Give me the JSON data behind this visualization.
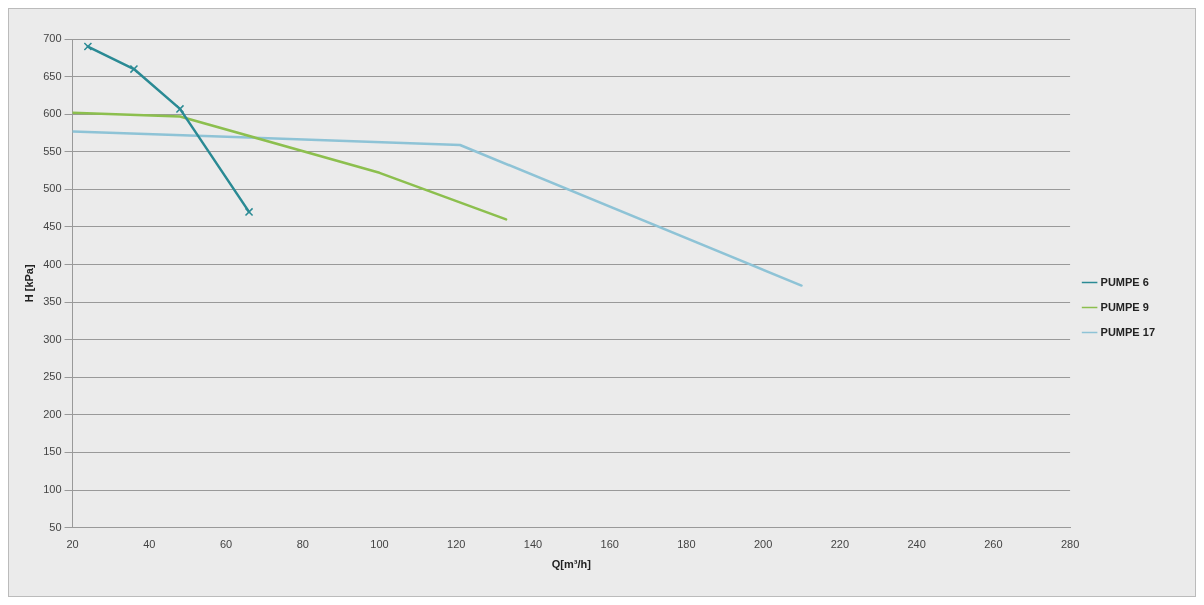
{
  "chart_data": {
    "type": "line",
    "xlabel": "Q[m³/h]",
    "ylabel": "H [kPa]",
    "xlim": [
      20,
      280
    ],
    "xticks": [
      20,
      40,
      60,
      80,
      100,
      120,
      140,
      160,
      180,
      200,
      220,
      240,
      260,
      280
    ],
    "ylim": [
      50,
      700
    ],
    "yticks": [
      50,
      100,
      150,
      200,
      250,
      300,
      350,
      400,
      450,
      500,
      550,
      600,
      650,
      700
    ],
    "grid": "y",
    "legend": "right",
    "line_style": "solid",
    "series": [
      {
        "name": "PUMPE 6",
        "color": "#2a8a94",
        "marker": "cross",
        "x": [
          24,
          36,
          48,
          66
        ],
        "values": [
          690,
          660,
          607,
          470
        ]
      },
      {
        "name": "PUMPE 9",
        "color": "#8cbf4e",
        "marker": "none",
        "x": [
          20,
          48,
          100,
          133
        ],
        "values": [
          602,
          597,
          522,
          460
        ]
      },
      {
        "name": "PUMPE 17",
        "color": "#8ec3d6",
        "marker": "none",
        "x": [
          20,
          121,
          210
        ],
        "values": [
          577,
          559,
          372
        ]
      }
    ]
  }
}
